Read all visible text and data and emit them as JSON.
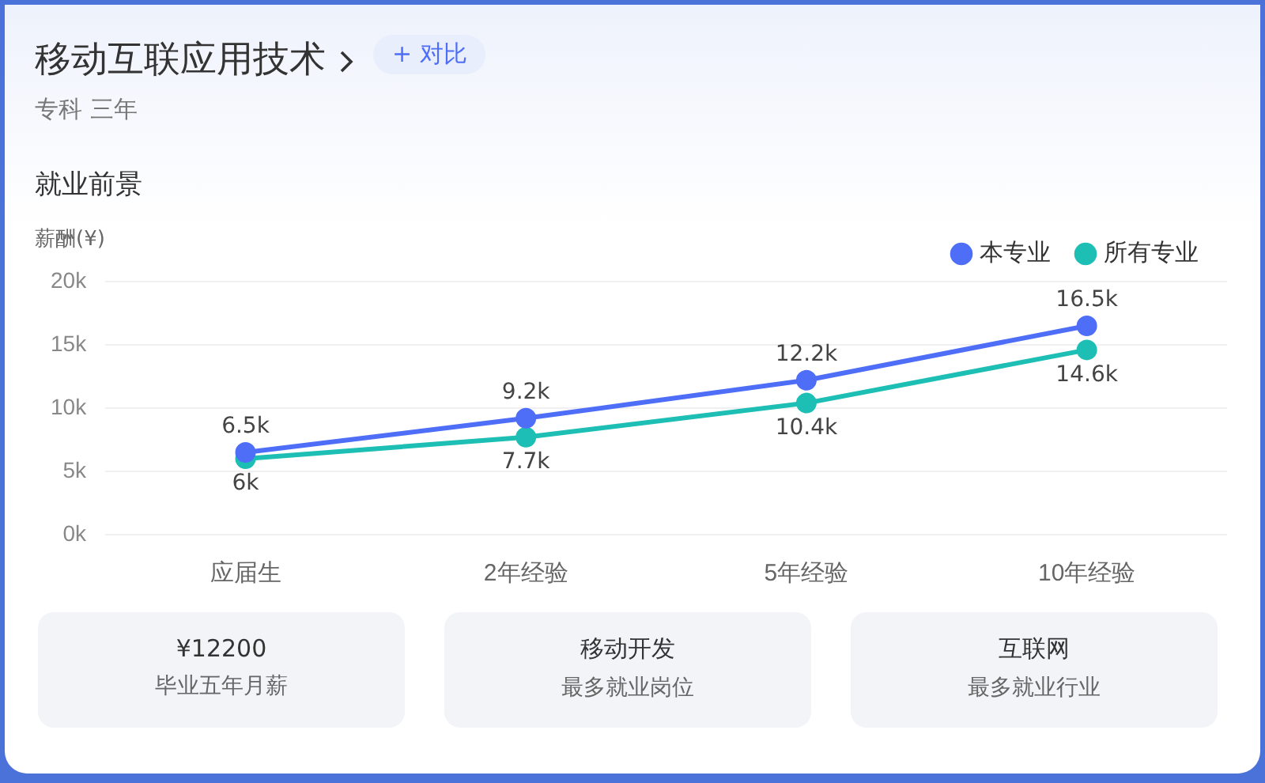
{
  "chart_data": {
    "type": "line",
    "title": "移动互联应用技术",
    "subtitle": "专科 三年",
    "ylabel": "薪酬(¥)",
    "categories": [
      "应届生",
      "2年经验",
      "5年经验",
      "10年经验"
    ],
    "series": [
      {
        "name": "本专业",
        "color": "#4f6ef7",
        "values": [
          6.5,
          9.2,
          12.2,
          16.5
        ],
        "value_labels": [
          "6.5k",
          "9.2k",
          "12.2k",
          "16.5k"
        ]
      },
      {
        "name": "所有专业",
        "color": "#1dbfb5",
        "values": [
          6,
          7.7,
          10.4,
          14.6
        ],
        "value_labels": [
          "6k",
          "7.7k",
          "10.4k",
          "14.6k"
        ]
      }
    ],
    "ylim": [
      0,
      20
    ],
    "yticks": [
      {
        "value": 0,
        "label": "0k"
      },
      {
        "value": 5,
        "label": "5k"
      },
      {
        "value": 10,
        "label": "10k"
      },
      {
        "value": 15,
        "label": "15k"
      },
      {
        "value": 20,
        "label": "20k"
      }
    ],
    "grid": "y",
    "legend": "top right",
    "marker": "circle",
    "line_style": "solid",
    "annotations": [
      "+ 对比",
      "就业前景",
      "¥12200",
      "毕业五年月薪",
      "移动开发",
      "最多就业岗位",
      "互联网",
      "最多就业行业"
    ]
  }
}
